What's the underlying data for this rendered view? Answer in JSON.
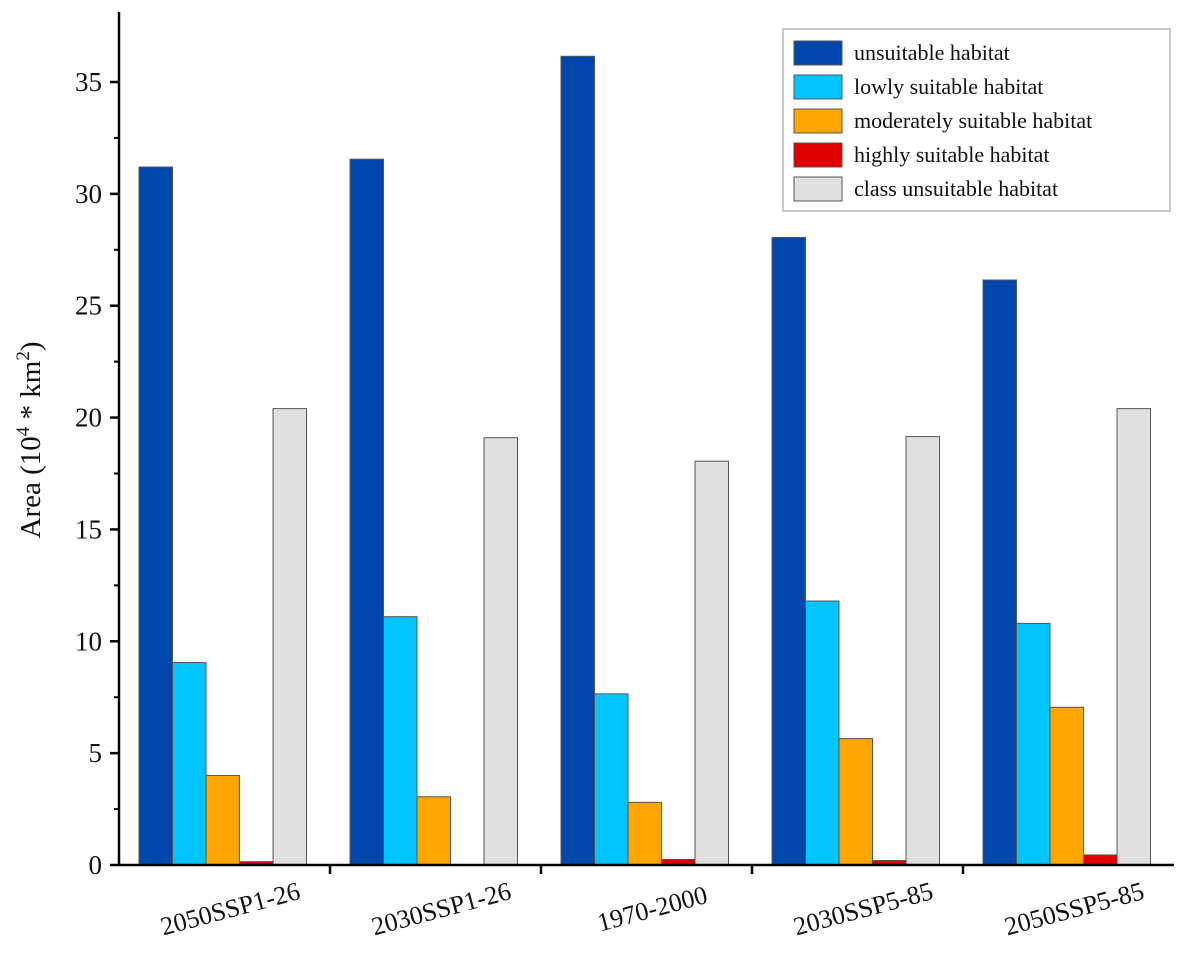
{
  "chart_data": {
    "type": "bar",
    "title": "",
    "xlabel": "",
    "ylabel_prefix": "Area (10",
    "ylabel_exp1": "4",
    "ylabel_mid": " * km",
    "ylabel_exp2": "2",
    "ylabel_suffix": ")",
    "ylim": [
      0,
      37
    ],
    "yticks": [
      0,
      5,
      10,
      15,
      20,
      25,
      30,
      35
    ],
    "categories": [
      "2050SSP1-26",
      "2030SSP1-26",
      "1970-2000",
      "2030SSP5-85",
      "2050SSP5-85"
    ],
    "legend_position": "top-right",
    "series": [
      {
        "name": "unsuitable habitat",
        "color": "#0047AB",
        "values": [
          31.2,
          31.55,
          36.15,
          28.05,
          26.15
        ]
      },
      {
        "name": "lowly suitable habitat",
        "color": "#00C5FF",
        "values": [
          9.05,
          11.1,
          7.65,
          11.8,
          10.8
        ]
      },
      {
        "name": "moderately suitable habitat",
        "color": "#FFA500",
        "values": [
          4.0,
          3.05,
          2.8,
          5.65,
          7.05
        ]
      },
      {
        "name": "highly suitable habitat",
        "color": "#E00000",
        "values": [
          0.15,
          0.0,
          0.25,
          0.2,
          0.45
        ]
      },
      {
        "name": "class unsuitable habitat",
        "color": "#E0E0E0",
        "values": [
          20.4,
          19.1,
          18.05,
          19.15,
          20.4
        ]
      }
    ]
  }
}
